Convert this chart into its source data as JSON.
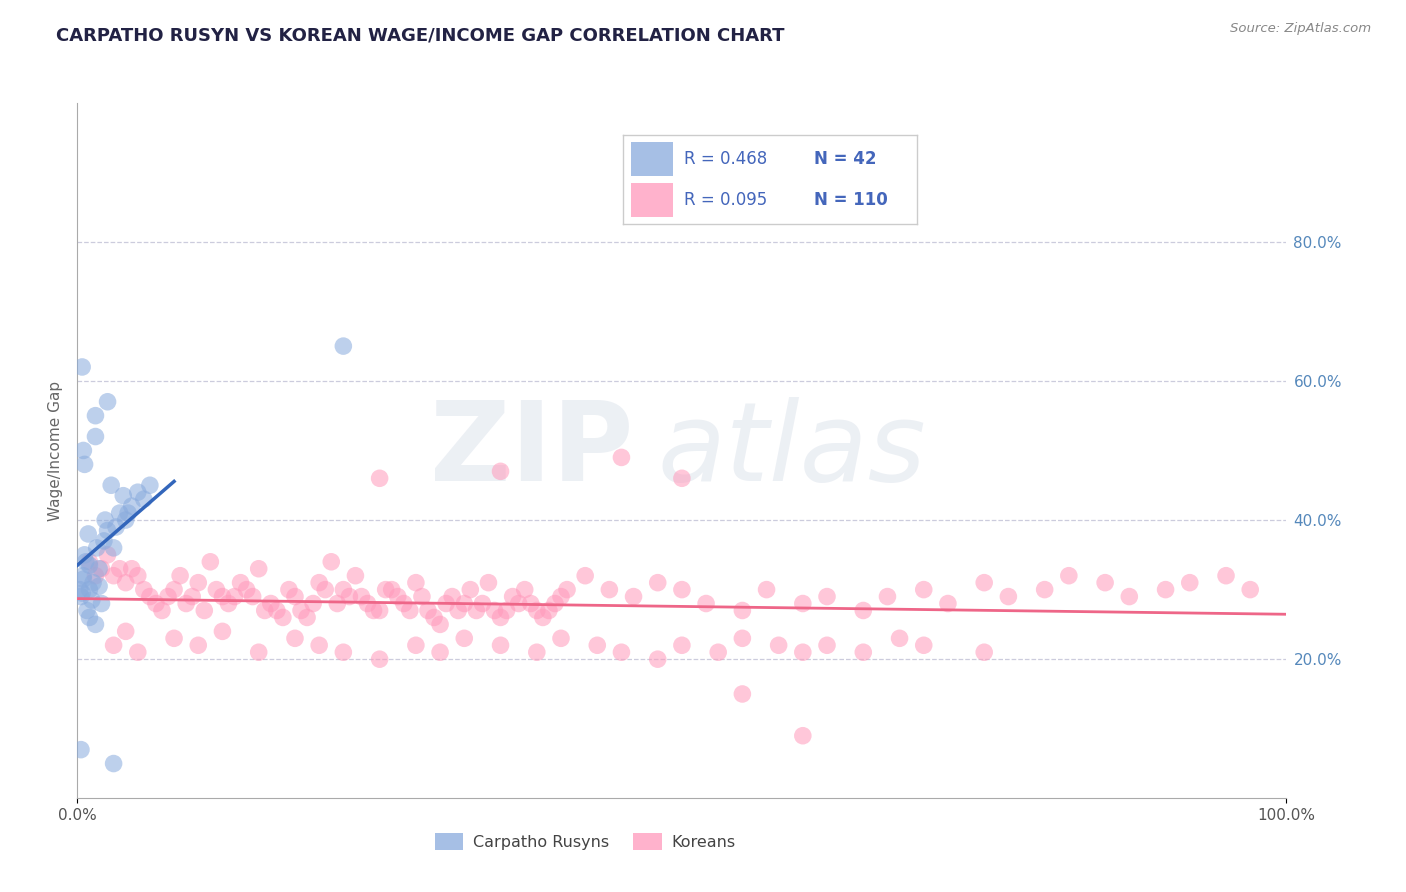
{
  "title": "CARPATHO RUSYN VS KOREAN WAGE/INCOME GAP CORRELATION CHART",
  "source": "Source: ZipAtlas.com",
  "ylabel": "Wage/Income Gap",
  "ytick_vals": [
    20,
    40,
    60,
    80
  ],
  "ytick_labels": [
    "20.0%",
    "40.0%",
    "60.0%",
    "80.0%"
  ],
  "xtick_labels": [
    "0.0%",
    "100.0%"
  ],
  "legend_label1": "Carpatho Rusyns",
  "legend_label2": "Koreans",
  "r1": "0.468",
  "n1": "42",
  "r2": "0.095",
  "n2": "110",
  "blue_color": "#88AADD",
  "pink_color": "#FF99BB",
  "blue_line_color": "#3366BB",
  "pink_line_color": "#EE6688",
  "grid_color": "#CCCCDD",
  "title_color": "#222244",
  "axis_label_color": "#666666",
  "tick_color_right": "#5588BB",
  "source_color": "#888888",
  "watermark_zip_color": "#AABBD0",
  "watermark_atlas_color": "#AABBD0",
  "xlim": [
    0,
    100
  ],
  "ylim": [
    0,
    100
  ],
  "blue_scatter_x": [
    0.3,
    0.4,
    0.5,
    0.5,
    0.6,
    0.7,
    0.8,
    0.9,
    1.0,
    1.0,
    1.0,
    1.2,
    1.3,
    1.5,
    1.5,
    1.6,
    1.8,
    1.8,
    2.0,
    2.2,
    2.3,
    2.5,
    2.8,
    3.0,
    3.2,
    3.5,
    3.8,
    4.0,
    4.2,
    4.5,
    5.0,
    5.5,
    6.0,
    0.2,
    0.4,
    0.5,
    0.6,
    22.0,
    0.3,
    1.5,
    2.5,
    3.0
  ],
  "blue_scatter_y": [
    29.0,
    62.0,
    32.0,
    50.0,
    48.0,
    34.0,
    27.0,
    38.0,
    30.0,
    26.0,
    33.5,
    28.5,
    31.0,
    25.0,
    52.0,
    36.0,
    33.0,
    30.5,
    28.0,
    37.0,
    40.0,
    38.5,
    45.0,
    36.0,
    39.0,
    41.0,
    43.5,
    40.0,
    41.0,
    42.0,
    44.0,
    43.0,
    45.0,
    30.0,
    29.5,
    31.5,
    35.0,
    65.0,
    7.0,
    55.0,
    57.0,
    5.0
  ],
  "pink_scatter_x": [
    1.0,
    1.5,
    2.0,
    2.5,
    3.0,
    3.5,
    4.0,
    4.5,
    5.0,
    5.5,
    6.0,
    6.5,
    7.0,
    7.5,
    8.0,
    8.5,
    9.0,
    9.5,
    10.0,
    10.5,
    11.0,
    11.5,
    12.0,
    12.5,
    13.0,
    13.5,
    14.0,
    14.5,
    15.0,
    15.5,
    16.0,
    16.5,
    17.0,
    17.5,
    18.0,
    18.5,
    19.0,
    19.5,
    20.0,
    20.5,
    21.0,
    21.5,
    22.0,
    22.5,
    23.0,
    23.5,
    24.0,
    24.5,
    25.0,
    25.5,
    26.0,
    26.5,
    27.0,
    27.5,
    28.0,
    28.5,
    29.0,
    29.5,
    30.0,
    30.5,
    31.0,
    31.5,
    32.0,
    32.5,
    33.0,
    33.5,
    34.0,
    34.5,
    35.0,
    35.5,
    36.0,
    36.5,
    37.0,
    37.5,
    38.0,
    38.5,
    39.0,
    39.5,
    40.0,
    40.5,
    42.0,
    44.0,
    46.0,
    48.0,
    50.0,
    52.0,
    55.0,
    57.0,
    60.0,
    62.0,
    65.0,
    67.0,
    70.0,
    72.0,
    75.0,
    77.0,
    80.0,
    82.0,
    85.0,
    87.0,
    90.0,
    92.0,
    95.0,
    97.0,
    25.0,
    35.0,
    45.0,
    50.0,
    55.0,
    60.0
  ],
  "pink_scatter_y": [
    34.0,
    32.0,
    33.0,
    35.0,
    32.0,
    33.0,
    31.0,
    33.0,
    32.0,
    30.0,
    29.0,
    28.0,
    27.0,
    29.0,
    30.0,
    32.0,
    28.0,
    29.0,
    31.0,
    27.0,
    34.0,
    30.0,
    29.0,
    28.0,
    29.0,
    31.0,
    30.0,
    29.0,
    33.0,
    27.0,
    28.0,
    27.0,
    26.0,
    30.0,
    29.0,
    27.0,
    26.0,
    28.0,
    31.0,
    30.0,
    34.0,
    28.0,
    30.0,
    29.0,
    32.0,
    29.0,
    28.0,
    27.0,
    27.0,
    30.0,
    30.0,
    29.0,
    28.0,
    27.0,
    31.0,
    29.0,
    27.0,
    26.0,
    25.0,
    28.0,
    29.0,
    27.0,
    28.0,
    30.0,
    27.0,
    28.0,
    31.0,
    27.0,
    26.0,
    27.0,
    29.0,
    28.0,
    30.0,
    28.0,
    27.0,
    26.0,
    27.0,
    28.0,
    29.0,
    30.0,
    32.0,
    30.0,
    29.0,
    31.0,
    30.0,
    28.0,
    27.0,
    30.0,
    28.0,
    29.0,
    27.0,
    29.0,
    30.0,
    28.0,
    31.0,
    29.0,
    30.0,
    32.0,
    31.0,
    29.0,
    30.0,
    31.0,
    32.0,
    30.0,
    46.0,
    47.0,
    49.0,
    46.0,
    15.0,
    9.0
  ],
  "extra_pink_x": [
    3.0,
    4.0,
    5.0,
    8.0,
    10.0,
    12.0,
    15.0,
    18.0,
    20.0,
    22.0,
    25.0,
    28.0,
    30.0,
    32.0,
    35.0,
    38.0,
    40.0,
    43.0,
    45.0,
    48.0,
    50.0,
    53.0,
    55.0,
    58.0,
    60.0,
    62.0,
    65.0,
    68.0,
    70.0,
    75.0
  ],
  "extra_pink_y": [
    22.0,
    24.0,
    21.0,
    23.0,
    22.0,
    24.0,
    21.0,
    23.0,
    22.0,
    21.0,
    20.0,
    22.0,
    21.0,
    23.0,
    22.0,
    21.0,
    23.0,
    22.0,
    21.0,
    20.0,
    22.0,
    21.0,
    23.0,
    22.0,
    21.0,
    22.0,
    21.0,
    23.0,
    22.0,
    21.0
  ]
}
